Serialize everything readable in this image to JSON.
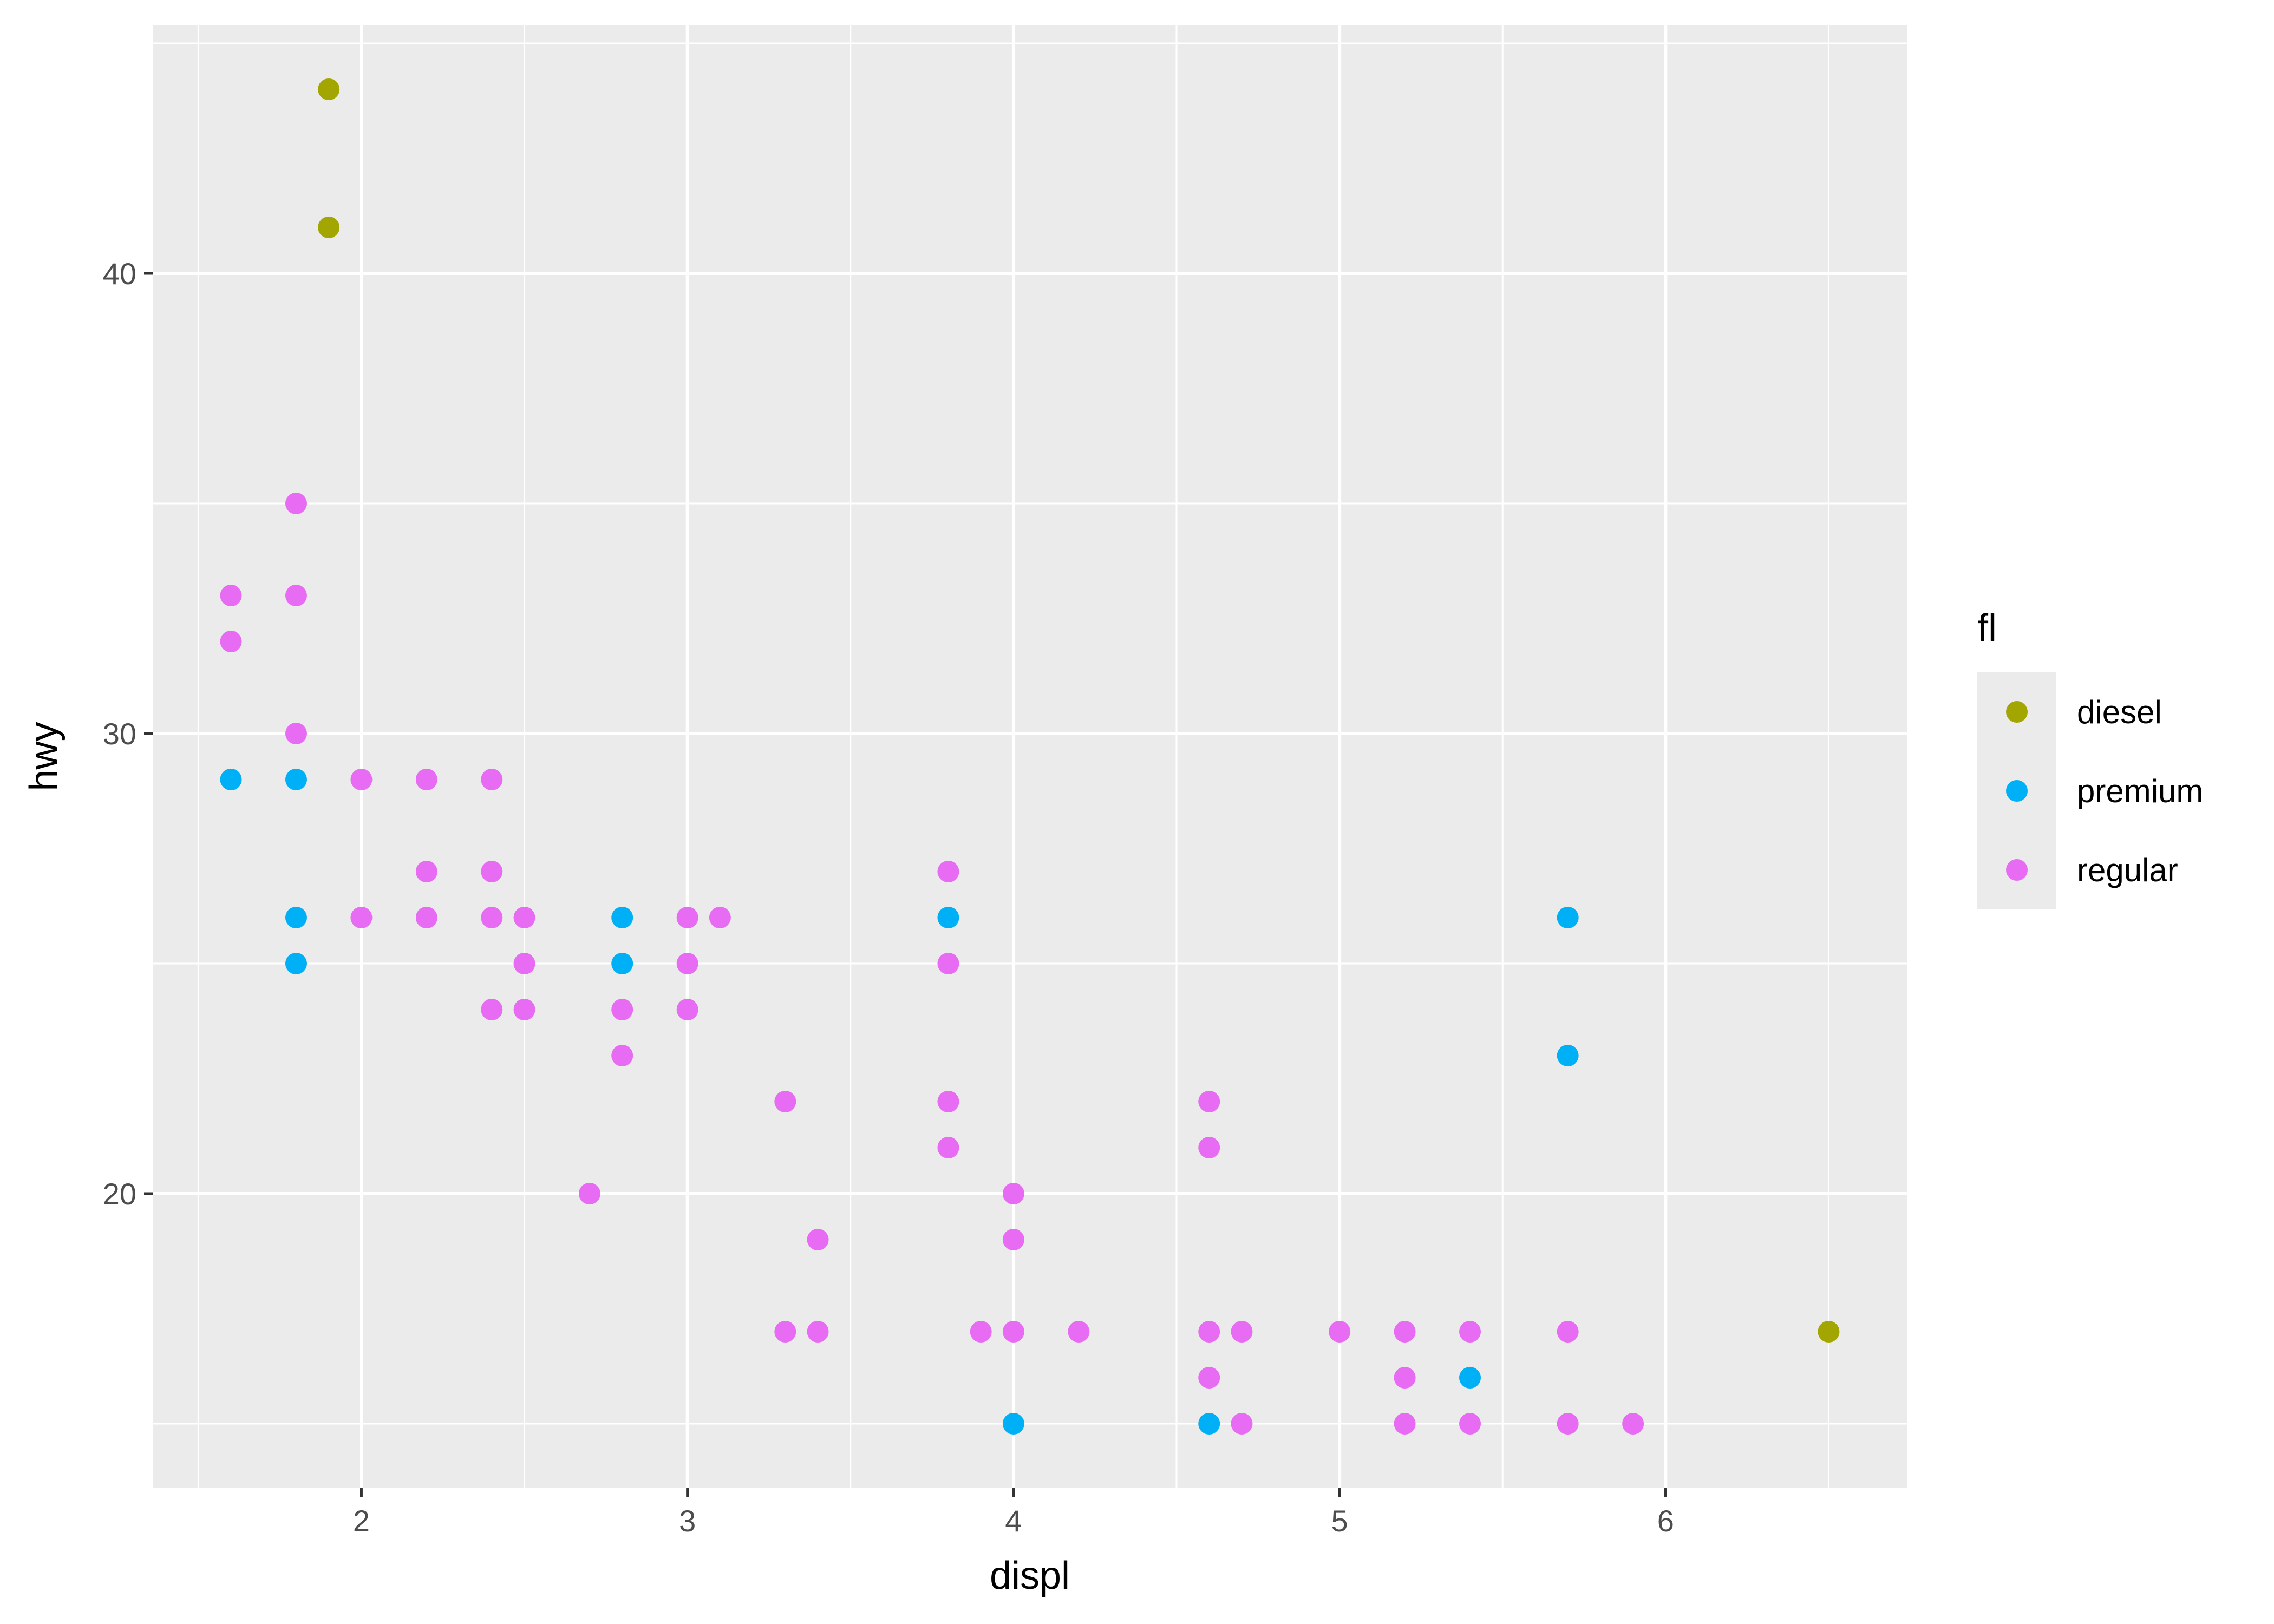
{
  "chart_data": {
    "type": "scatter",
    "title": "",
    "xlabel": "displ",
    "ylabel": "hwy",
    "xlim": [
      1.36,
      6.74
    ],
    "ylim": [
      13.6,
      45.4
    ],
    "x_ticks": [
      2,
      3,
      4,
      5,
      6
    ],
    "y_ticks": [
      20,
      30,
      40
    ],
    "x_tick_labels": [
      "2",
      "3",
      "4",
      "5",
      "6"
    ],
    "y_tick_labels": [
      "20",
      "30",
      "40"
    ],
    "grid": true,
    "legend": {
      "title": "fl",
      "position": "right"
    },
    "colors": {
      "diesel": "#A3A500",
      "premium": "#00B0F6",
      "regular": "#E76BF3",
      "panel": "#EBEBEB",
      "grid": "#FFFFFF"
    },
    "series": [
      {
        "name": "diesel",
        "color": "#A3A500",
        "points": [
          [
            1.9,
            44
          ],
          [
            1.9,
            41
          ],
          [
            6.5,
            17
          ]
        ]
      },
      {
        "name": "premium",
        "color": "#00B0F6",
        "points": [
          [
            1.6,
            29
          ],
          [
            1.8,
            29
          ],
          [
            1.8,
            26
          ],
          [
            1.8,
            25
          ],
          [
            2.8,
            26
          ],
          [
            2.8,
            25
          ],
          [
            3.8,
            26
          ],
          [
            4.0,
            15
          ],
          [
            4.6,
            15
          ],
          [
            5.4,
            16
          ],
          [
            5.7,
            26
          ],
          [
            5.7,
            23
          ]
        ]
      },
      {
        "name": "regular",
        "color": "#E76BF3",
        "points": [
          [
            1.6,
            33
          ],
          [
            1.6,
            32
          ],
          [
            1.8,
            35
          ],
          [
            1.8,
            33
          ],
          [
            1.8,
            30
          ],
          [
            2.0,
            29
          ],
          [
            2.0,
            26
          ],
          [
            2.2,
            29
          ],
          [
            2.2,
            27
          ],
          [
            2.2,
            26
          ],
          [
            2.4,
            29
          ],
          [
            2.4,
            27
          ],
          [
            2.4,
            26
          ],
          [
            2.4,
            24
          ],
          [
            2.5,
            26
          ],
          [
            2.5,
            25
          ],
          [
            2.5,
            24
          ],
          [
            2.7,
            20
          ],
          [
            2.8,
            24
          ],
          [
            2.8,
            23
          ],
          [
            3.0,
            26
          ],
          [
            3.0,
            25
          ],
          [
            3.0,
            24
          ],
          [
            3.1,
            26
          ],
          [
            3.3,
            22
          ],
          [
            3.3,
            17
          ],
          [
            3.4,
            19
          ],
          [
            3.4,
            17
          ],
          [
            3.8,
            27
          ],
          [
            3.8,
            25
          ],
          [
            3.8,
            22
          ],
          [
            3.8,
            21
          ],
          [
            3.9,
            17
          ],
          [
            4.0,
            20
          ],
          [
            4.0,
            19
          ],
          [
            4.0,
            17
          ],
          [
            4.2,
            17
          ],
          [
            4.6,
            22
          ],
          [
            4.6,
            21
          ],
          [
            4.6,
            17
          ],
          [
            4.6,
            16
          ],
          [
            4.7,
            17
          ],
          [
            4.7,
            15
          ],
          [
            5.0,
            17
          ],
          [
            5.2,
            17
          ],
          [
            5.2,
            16
          ],
          [
            5.2,
            15
          ],
          [
            5.4,
            17
          ],
          [
            5.4,
            15
          ],
          [
            5.7,
            17
          ],
          [
            5.7,
            15
          ],
          [
            5.9,
            15
          ]
        ]
      }
    ]
  }
}
